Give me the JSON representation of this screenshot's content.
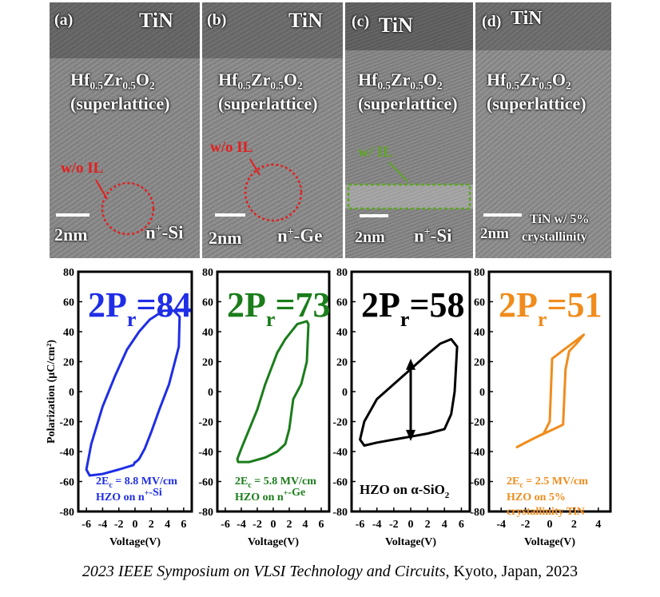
{
  "tem_panels": [
    {
      "letter": "(a)",
      "top_electrode": "TiN",
      "film": "Hf",
      "film_sub1": "0.5",
      "film_zr": "Zr",
      "film_sub2": "0.5",
      "film_o": "O",
      "film_sub3": "2",
      "structure": "(superlattice)",
      "interface_note": "w/o IL",
      "scale": "2nm",
      "substrate": "n",
      "substrate_sup": "+",
      "substrate_rest": "-Si"
    },
    {
      "letter": "(b)",
      "top_electrode": "TiN",
      "film": "Hf",
      "film_sub1": "0.5",
      "film_zr": "Zr",
      "film_sub2": "0.5",
      "film_o": "O",
      "film_sub3": "2",
      "structure": "(superlattice)",
      "interface_note": "w/o IL",
      "scale": "2nm",
      "substrate": "n",
      "substrate_sup": "+",
      "substrate_rest": "-Ge"
    },
    {
      "letter": "(c)",
      "top_electrode": "TiN",
      "film": "Hf",
      "film_sub1": "0.5",
      "film_zr": "Zr",
      "film_sub2": "0.5",
      "film_o": "O",
      "film_sub3": "2",
      "structure": "(superlattice)",
      "interface_note": "w/ IL",
      "scale": "2nm",
      "substrate": "n",
      "substrate_sup": "+",
      "substrate_rest": "-Si"
    },
    {
      "letter": "(d)",
      "top_electrode": "TiN",
      "film": "Hf",
      "film_sub1": "0.5",
      "film_zr": "Zr",
      "film_sub2": "0.5",
      "film_o": "O",
      "film_sub3": "2",
      "structure": "(superlattice)",
      "interface_note": "",
      "scale": "2nm",
      "substrate": "TiN w/ 5%",
      "substrate_sup": "",
      "substrate_rest": "crystallinity"
    }
  ],
  "chart_data": [
    {
      "type": "line",
      "color": "#1f2ee6",
      "pr_text": "2P",
      "pr_sub": "r",
      "pr_value": "=84",
      "ylabel": "Polarization (μC/cm²)",
      "xlabel": "Voltage(V)",
      "ylim": [
        -80,
        80
      ],
      "xlim": [
        -7,
        7
      ],
      "yticks": [
        "80",
        "60",
        "40",
        "20",
        "0",
        "-20",
        "-40",
        "-60",
        "-80"
      ],
      "xticks": [
        "-6",
        "-4",
        "-2",
        "0",
        "2",
        "4",
        "6"
      ],
      "ann1": "2E",
      "ann1_sub": "c",
      "ann1_rest": " = 8.8 MV/cm",
      "ann2": "HZO on n",
      "ann2_sup": "+",
      "ann2_rest": "-Si",
      "series": [
        {
          "x": [
            -6,
            -5.4,
            -4,
            -2.5,
            -1,
            0.5,
            1.8,
            3.5,
            4.8,
            5.5,
            5.4,
            4.2,
            3,
            2,
            1.2,
            0.5,
            0.1,
            0,
            -0.2,
            -2,
            -4,
            -5.6,
            -6
          ],
          "y": [
            -52,
            -35,
            -10,
            10,
            28,
            40,
            48,
            54,
            54,
            50,
            30,
            5,
            -12,
            -27,
            -38,
            -45,
            -47,
            -47,
            -49,
            -52,
            -55,
            -56,
            -52
          ]
        }
      ]
    },
    {
      "type": "line",
      "color": "#1b7d1b",
      "pr_text": "2P",
      "pr_sub": "r",
      "pr_value": "=73",
      "ylabel": "",
      "xlabel": "Voltage(V)",
      "ylim": [
        -80,
        80
      ],
      "xlim": [
        -7,
        7
      ],
      "yticks": [
        "80",
        "60",
        "40",
        "20",
        "0",
        "-20",
        "-40",
        "-60",
        "-80"
      ],
      "xticks": [
        "-6",
        "-4",
        "-2",
        "0",
        "2",
        "4",
        "6"
      ],
      "ann1": "2E",
      "ann1_sub": "c",
      "ann1_rest": " = 5.8 MV/cm",
      "ann2": "HZO on n",
      "ann2_sup": "+",
      "ann2_rest": "-Ge",
      "series": [
        {
          "x": [
            -4.5,
            -4,
            -3,
            -2,
            -1,
            0.5,
            1.5,
            3,
            4.2,
            4.4,
            4.2,
            3.5,
            2.5,
            2,
            1.5,
            0.5,
            -1,
            -3,
            -4.4,
            -4.5
          ],
          "y": [
            -45,
            -38,
            -25,
            -12,
            5,
            26,
            35,
            45,
            47,
            45,
            20,
            5,
            -5,
            -25,
            -35,
            -40,
            -44,
            -47,
            -47,
            -45
          ]
        }
      ]
    },
    {
      "type": "line",
      "color": "#000000",
      "pr_text": "2P",
      "pr_sub": "r",
      "pr_value": "=58",
      "ylabel": "",
      "xlabel": "Voltage(V)",
      "ylim": [
        -80,
        80
      ],
      "xlim": [
        -7,
        7
      ],
      "yticks": [
        "80",
        "60",
        "40",
        "20",
        "0",
        "-20",
        "-40",
        "-60",
        "-80"
      ],
      "xticks": [
        "-6",
        "-4",
        "-2",
        "0",
        "2",
        "4",
        "6"
      ],
      "ann1": "",
      "ann1_sub": "",
      "ann1_rest": "",
      "ann2": "HZO on α-SiO",
      "ann2_sup": "",
      "ann2_sub": "2",
      "ann2_rest": "",
      "series": [
        {
          "x": [
            -6,
            -5.5,
            -4,
            -2,
            0,
            2,
            3.5,
            4.8,
            5.5,
            5.2,
            4.8,
            4,
            2,
            0,
            -2,
            -4,
            -5.5,
            -6
          ],
          "y": [
            -32,
            -20,
            -5,
            5,
            15,
            25,
            32,
            35,
            30,
            0,
            -15,
            -25,
            -28,
            -30,
            -32,
            -34,
            -36,
            -32
          ]
        }
      ],
      "arrow": {
        "x": 0,
        "y_from": 22,
        "y_to": -33
      }
    },
    {
      "type": "line",
      "color": "#f08c1c",
      "pr_text": "2P",
      "pr_sub": "r",
      "pr_value": "=51",
      "ylabel": "",
      "xlabel": "Voltage(V)",
      "ylim": [
        -80,
        80
      ],
      "xlim": [
        -5,
        5
      ],
      "yticks": [
        "80",
        "60",
        "40",
        "20",
        "0",
        "-20",
        "-40",
        "-60",
        "-80"
      ],
      "xticks": [
        "-4",
        "-2",
        "0",
        "2",
        "4"
      ],
      "ann1": "2E",
      "ann1_sub": "c",
      "ann1_rest": " = 2.5 MV/cm",
      "ann2": "HZO on 5%",
      "ann2_sup": "",
      "ann2_rest": "",
      "ann3": "crystallinity TiN",
      "series": [
        {
          "x": [
            -2.7,
            -1.5,
            -0.5,
            0,
            0.2,
            1,
            2,
            2.8,
            2.2,
            1.6,
            1.3,
            1.1,
            0.6,
            -0.2,
            -1,
            -2,
            -2.7
          ],
          "y": [
            -37,
            -32,
            -28,
            -20,
            22,
            27,
            33,
            38,
            32,
            27,
            15,
            -22,
            -24,
            -27,
            -30,
            -34,
            -37
          ]
        }
      ]
    }
  ],
  "caption": {
    "italic": "2023 IEEE Symposium on VLSI Technology and Circuits",
    "rest": ", Kyoto, Japan, 2023"
  }
}
